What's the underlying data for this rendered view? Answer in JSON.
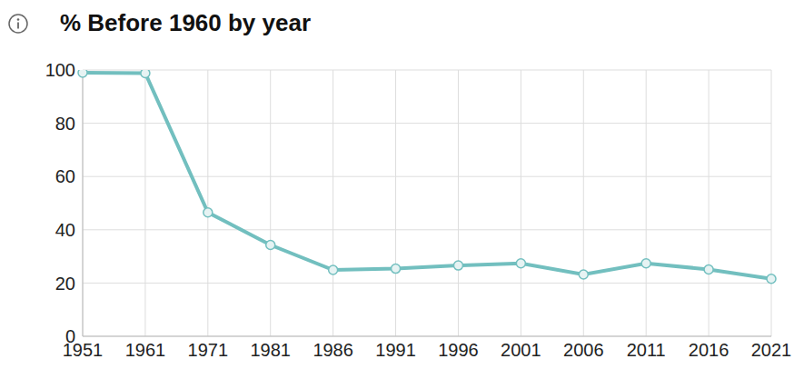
{
  "chart_data": {
    "type": "line",
    "title": "% Before 1960 by year",
    "categories": [
      "1951",
      "1961",
      "1971",
      "1981",
      "1986",
      "1991",
      "1996",
      "2001",
      "2006",
      "2011",
      "2016",
      "2021"
    ],
    "values": [
      99,
      98.8,
      46.5,
      34.3,
      24.9,
      25.4,
      26.6,
      27.4,
      23.2,
      27.4,
      25.1,
      21.6
    ],
    "color": "#72bfbf",
    "ylim": [
      0,
      100
    ],
    "yticks": [
      0,
      20,
      40,
      60,
      80,
      100
    ],
    "grid": true,
    "marker": "circle",
    "line_style": "solid"
  }
}
